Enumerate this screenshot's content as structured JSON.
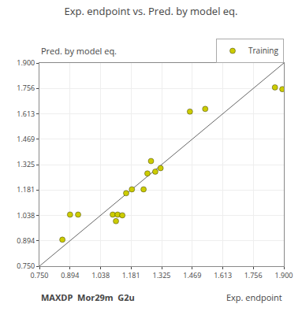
{
  "chart_data": {
    "type": "scatter",
    "title": "Exp. endpoint vs. Pred. by model eq.",
    "x_label": "Exp. endpoint",
    "y_label": "Pred. by model eq.",
    "annotations": [
      "MAXDP  Mor29m  G2u"
    ],
    "series": [
      {
        "type": "line",
        "color": "#666666",
        "x": [
          0.75,
          1.9
        ],
        "values": [
          0.75,
          1.9
        ]
      },
      {
        "type": "scatter",
        "name": "Training",
        "color": "#cccc00",
        "marker": "circle",
        "x": [
          0.858,
          0.894,
          0.932,
          1.095,
          1.11,
          1.118,
          1.14,
          1.158,
          1.24,
          1.258,
          1.275,
          1.295,
          1.32,
          1.185,
          1.458,
          1.53,
          1.858,
          1.893
        ],
        "values": [
          0.9,
          1.042,
          1.042,
          1.042,
          1.005,
          1.042,
          1.038,
          1.163,
          1.185,
          1.275,
          1.345,
          1.285,
          1.305,
          1.185,
          1.625,
          1.64,
          1.762,
          1.752
        ]
      }
    ],
    "xlim": [
      0.75,
      1.9
    ],
    "ylim": [
      0.75,
      1.9
    ],
    "xticks": [
      {
        "value": 0.75,
        "label": "0.750"
      },
      0.894,
      1.038,
      1.181,
      1.325,
      1.469,
      1.613,
      1.756,
      {
        "value": 1.9,
        "label": "1.900"
      }
    ],
    "yticks": [
      {
        "value": 0.75,
        "label": "0.750"
      },
      0.894,
      1.038,
      1.181,
      1.325,
      1.469,
      1.613,
      1.756,
      {
        "value": 1.9,
        "label": "1.900"
      }
    ],
    "grid": true,
    "legend": "top right"
  }
}
